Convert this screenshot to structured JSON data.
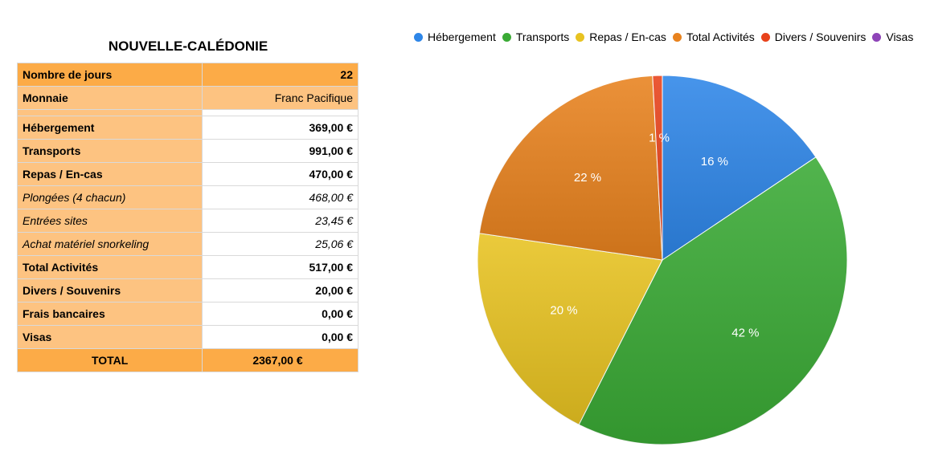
{
  "table": {
    "title": "NOUVELLE-CALÉDONIE",
    "rows": [
      {
        "label": "Nombre de jours",
        "value": "22"
      },
      {
        "label": "Monnaie",
        "value": "Franc Pacifique"
      },
      {
        "label": "",
        "value": ""
      },
      {
        "label": "Hébergement",
        "value": "369,00 €"
      },
      {
        "label": "Transports",
        "value": "991,00 €"
      },
      {
        "label": "Repas / En-cas",
        "value": "470,00 €"
      },
      {
        "label": "Plongées (4 chacun)",
        "value": "468,00 €"
      },
      {
        "label": "Entrées sites",
        "value": "23,45 €"
      },
      {
        "label": "Achat matériel snorkeling",
        "value": "25,06 €"
      },
      {
        "label": "Total Activités",
        "value": "517,00 €"
      },
      {
        "label": "Divers / Souvenirs",
        "value": "20,00 €"
      },
      {
        "label": "Frais bancaires",
        "value": "0,00 €"
      },
      {
        "label": "Visas",
        "value": "0,00 €"
      },
      {
        "label": "TOTAL",
        "value": "2367,00 €"
      }
    ]
  },
  "chart_data": {
    "type": "pie",
    "categories": [
      "Hébergement",
      "Transports",
      "Repas / En-cas",
      "Total Activités",
      "Divers / Souvenirs",
      "Visas"
    ],
    "values": [
      369,
      991,
      470,
      517,
      20,
      0
    ],
    "labels": [
      "16 %",
      "42 %",
      "20 %",
      "22 %",
      "1 %",
      ""
    ],
    "colors": [
      "#2e86e8",
      "#3aaa35",
      "#e8c321",
      "#e8821e",
      "#e8421b",
      "#8e44b8"
    ],
    "legend_position": "top"
  }
}
